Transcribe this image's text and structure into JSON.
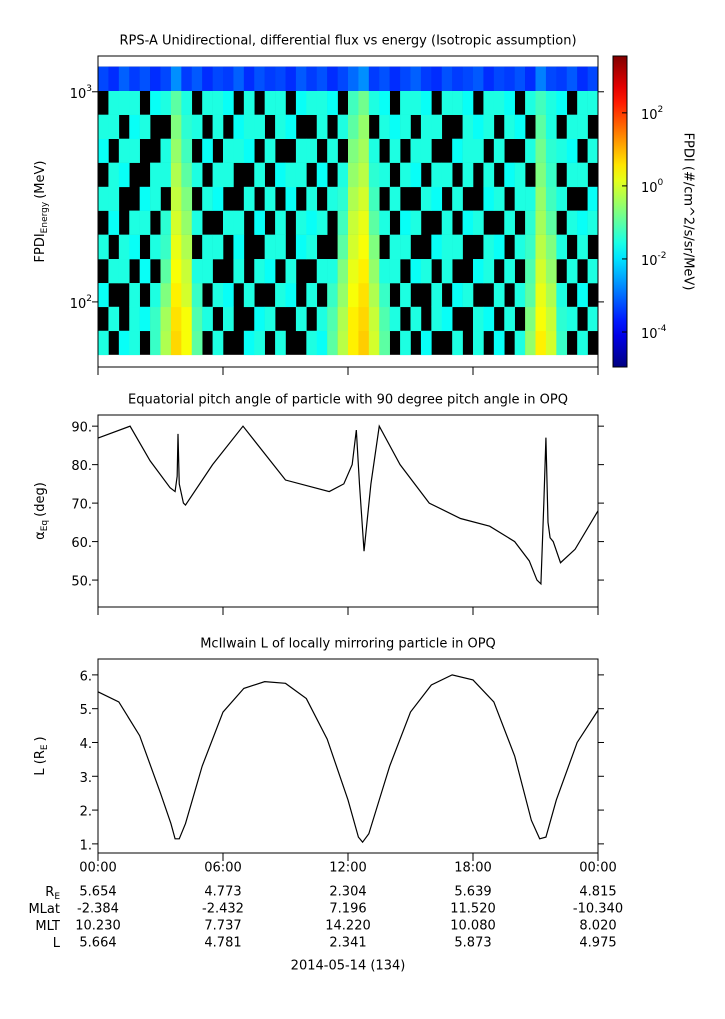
{
  "chart_data": [
    {
      "type": "spectrogram",
      "title": "RPS-A Unidirectional, differential flux vs energy (Isotropic assumption)",
      "ylabel": "FPDI",
      "ylabel_sub": "Energy",
      "ylabel_end": "(MeV)",
      "zlabel": "FPDI (#/cm^2/s/sr/MeV)",
      "ylog": true,
      "xlim": [
        0,
        24
      ],
      "xticks": [
        0,
        6,
        12,
        18,
        24
      ],
      "ylim": [
        49,
        1480
      ],
      "yticks": [
        {
          "value": 100,
          "label": "10",
          "exponent": "2"
        },
        {
          "value": 1000,
          "label": "10",
          "exponent": "3"
        }
      ],
      "zlim": [
        1.1e-05,
        3600
      ],
      "zticks": [
        {
          "value": 0.0001,
          "label": "10",
          "exponent": "-4"
        },
        {
          "value": 0.01,
          "label": "10",
          "exponent": "-2"
        },
        {
          "value": 1,
          "label": "10",
          "exponent": "0"
        },
        {
          "value": 100,
          "label": "10",
          "exponent": "2"
        }
      ],
      "x": [
        0.25,
        0.75,
        1.25,
        1.75,
        2.25,
        2.75,
        3.25,
        3.75,
        4.25,
        4.75,
        5.25,
        5.75,
        6.25,
        6.75,
        7.25,
        7.75,
        8.25,
        8.75,
        9.25,
        9.75,
        10.25,
        10.75,
        11.25,
        11.75,
        12.25,
        12.75,
        13.25,
        13.75,
        14.25,
        14.75,
        15.25,
        15.75,
        16.25,
        16.75,
        17.25,
        17.75,
        18.25,
        18.75,
        19.25,
        19.75,
        20.25,
        20.75,
        21.25,
        21.75,
        22.25,
        22.75,
        23.25,
        23.75
      ],
      "ybins": [
        56,
        72.9,
        94.8,
        123,
        160,
        209,
        272,
        353,
        460,
        598,
        778,
        1012,
        1317
      ],
      "z": [
        [
          0.03,
          null,
          0.02,
          0.03,
          null,
          0.05,
          0.5,
          5,
          2,
          0.1,
          null,
          0.03,
          null,
          null,
          0.02,
          0.03,
          null,
          0.03,
          null,
          null,
          0.03,
          0.02,
          0.1,
          0.6,
          3,
          6,
          1,
          0.1,
          null,
          0.03,
          null,
          0.02,
          null,
          null,
          0.03,
          null,
          0.03,
          null,
          0.02,
          null,
          0.03,
          0.3,
          3,
          1,
          0.05,
          null,
          0.03,
          null
        ],
        [
          null,
          0.03,
          null,
          0.03,
          0.02,
          0.05,
          0.4,
          4,
          2,
          0.08,
          0.03,
          null,
          0.03,
          null,
          null,
          0.02,
          0.03,
          null,
          null,
          0.03,
          null,
          0.03,
          0.08,
          0.5,
          3,
          5,
          0.8,
          0.08,
          0.03,
          null,
          0.03,
          null,
          0.03,
          0.02,
          null,
          null,
          0.03,
          0.02,
          null,
          0.03,
          null,
          0.2,
          2,
          0.8,
          0.04,
          0.03,
          null,
          0.03
        ],
        [
          0.02,
          null,
          null,
          0.03,
          null,
          0.03,
          0.2,
          3,
          1,
          0.05,
          null,
          0.03,
          0.02,
          null,
          0.03,
          null,
          null,
          0.03,
          0.02,
          null,
          0.03,
          null,
          0.05,
          0.3,
          2,
          4,
          0.5,
          0.05,
          null,
          0.03,
          null,
          null,
          0.03,
          null,
          0.02,
          0.03,
          null,
          null,
          0.03,
          null,
          0.03,
          0.1,
          1.5,
          0.5,
          0.03,
          null,
          0.02,
          null
        ],
        [
          null,
          0.03,
          0.03,
          null,
          0.02,
          null,
          0.1,
          2,
          0.8,
          0.03,
          0.03,
          null,
          null,
          0.03,
          null,
          0.03,
          0.02,
          null,
          0.03,
          null,
          null,
          0.03,
          0.03,
          0.2,
          1.5,
          3,
          0.3,
          0.03,
          0.03,
          null,
          0.02,
          0.03,
          null,
          0.03,
          null,
          null,
          0.02,
          0.03,
          null,
          0.03,
          null,
          0.08,
          1,
          0.3,
          null,
          0.03,
          null,
          0.03
        ],
        [
          0.03,
          null,
          0.03,
          0.02,
          null,
          0.03,
          0.05,
          1.5,
          0.5,
          null,
          0.03,
          0.03,
          null,
          0.02,
          null,
          null,
          0.03,
          0.03,
          null,
          0.02,
          0.03,
          null,
          null,
          0.1,
          1,
          2,
          0.2,
          null,
          0.03,
          0.03,
          null,
          null,
          0.02,
          0.03,
          0.03,
          null,
          null,
          0.03,
          0.02,
          null,
          0.03,
          0.05,
          0.6,
          0.2,
          0.03,
          null,
          0.03,
          null
        ],
        [
          null,
          0.02,
          null,
          0.03,
          0.03,
          null,
          0.04,
          1,
          0.3,
          0.03,
          null,
          null,
          0.03,
          0.03,
          null,
          0.02,
          null,
          0.03,
          null,
          0.03,
          0.02,
          0.03,
          null,
          0.06,
          0.8,
          1.5,
          0.1,
          0.03,
          null,
          0.02,
          0.03,
          null,
          null,
          0.03,
          null,
          0.02,
          0.03,
          null,
          null,
          0.03,
          null,
          0.04,
          0.4,
          0.1,
          null,
          0.03,
          0.02,
          0.03
        ],
        [
          0.03,
          0.03,
          null,
          null,
          0.02,
          0.03,
          null,
          0.7,
          0.2,
          null,
          0.03,
          0.02,
          null,
          null,
          0.03,
          null,
          0.03,
          null,
          0.02,
          null,
          0.03,
          null,
          0.03,
          0.04,
          0.5,
          1,
          0.06,
          null,
          0.03,
          null,
          null,
          0.03,
          0.02,
          null,
          0.03,
          null,
          null,
          0.02,
          0.03,
          null,
          0.03,
          0.03,
          0.3,
          0.06,
          0.03,
          null,
          null,
          0.02
        ],
        [
          null,
          0.03,
          0.02,
          null,
          null,
          0.03,
          0.03,
          0.5,
          0.1,
          0.03,
          null,
          0.03,
          0.03,
          null,
          null,
          0.03,
          null,
          0.02,
          0.03,
          0.03,
          null,
          0.02,
          null,
          0.03,
          0.3,
          0.6,
          0.04,
          0.03,
          null,
          0.03,
          0.02,
          null,
          0.03,
          0.03,
          null,
          0.03,
          null,
          0.03,
          null,
          0.02,
          0.03,
          null,
          0.2,
          0.05,
          null,
          0.03,
          0.03,
          null
        ],
        [
          0.02,
          null,
          0.03,
          0.03,
          null,
          null,
          0.03,
          0.3,
          0.06,
          null,
          0.02,
          null,
          0.03,
          0.03,
          0.02,
          null,
          0.03,
          null,
          null,
          0.03,
          0.03,
          null,
          0.03,
          null,
          0.2,
          0.4,
          0.03,
          null,
          0.03,
          null,
          0.03,
          0.03,
          null,
          null,
          0.02,
          0.03,
          0.03,
          null,
          0.03,
          null,
          null,
          0.03,
          0.15,
          0.04,
          0.03,
          0.02,
          null,
          0.03
        ],
        [
          0.03,
          0.03,
          null,
          0.02,
          0.03,
          null,
          null,
          0.2,
          0.04,
          0.03,
          null,
          0.03,
          null,
          0.02,
          0.03,
          0.03,
          null,
          0.03,
          0.02,
          null,
          null,
          0.03,
          null,
          0.03,
          0.1,
          0.3,
          null,
          0.03,
          0.02,
          0.03,
          null,
          0.03,
          0.03,
          null,
          null,
          0.03,
          0.02,
          0.03,
          null,
          0.03,
          0.02,
          null,
          0.1,
          0.03,
          null,
          0.03,
          0.03,
          null
        ],
        [
          null,
          0.03,
          0.03,
          0.03,
          null,
          0.02,
          0.03,
          0.1,
          0.03,
          null,
          0.03,
          0.03,
          0.02,
          null,
          0.03,
          null,
          0.03,
          0.03,
          null,
          0.02,
          0.03,
          0.03,
          0.02,
          null,
          0.06,
          0.15,
          0.03,
          0.02,
          null,
          0.03,
          0.03,
          0.02,
          null,
          0.03,
          0.03,
          0.02,
          null,
          0.03,
          0.03,
          0.02,
          null,
          0.03,
          0.06,
          0.03,
          0.02,
          null,
          0.03,
          0.03
        ],
        [
          0.0005,
          0.0003,
          0.0008,
          0.0004,
          0.0006,
          0.0003,
          0.0005,
          0.002,
          0.0004,
          0.0007,
          0.0003,
          0.0005,
          0.0004,
          0.0008,
          0.0003,
          0.0006,
          0.0004,
          0.0005,
          0.0003,
          0.0007,
          0.0004,
          0.0006,
          0.0003,
          0.0005,
          0.001,
          0.002,
          0.0004,
          0.0006,
          0.0003,
          0.0005,
          0.0008,
          0.0004,
          0.0003,
          0.0006,
          0.0004,
          0.0005,
          0.0007,
          0.0003,
          0.0005,
          0.0004,
          0.0006,
          0.0003,
          0.0015,
          0.0005,
          0.0004,
          0.0007,
          0.0003,
          0.0005
        ]
      ]
    },
    {
      "type": "line",
      "title": "Equatorial pitch angle of particle with 90 degree pitch angle in OPQ",
      "ylabel": "α",
      "ylabel_sub": "Eq",
      "ylabel_end": "(deg)",
      "xlim": [
        0,
        24
      ],
      "xticks": [
        0,
        6,
        12,
        18,
        24
      ],
      "ylim": [
        43,
        92.9
      ],
      "yticks": [
        {
          "value": 50,
          "label": "50."
        },
        {
          "value": 60,
          "label": "60."
        },
        {
          "value": 70,
          "label": "70."
        },
        {
          "value": 80,
          "label": "80."
        },
        {
          "value": 90,
          "label": "90."
        }
      ],
      "color": "#000000",
      "x": [
        0,
        1.54,
        2.5,
        3.46,
        3.7,
        3.8,
        3.84,
        3.9,
        4.1,
        4.2,
        5.5,
        6.96,
        9,
        11.1,
        11.8,
        12.2,
        12.4,
        12.55,
        12.77,
        13.1,
        13.5,
        14.5,
        15.9,
        17.4,
        18.8,
        20,
        20.7,
        21.07,
        21.26,
        21.4,
        21.5,
        21.6,
        21.7,
        21.85,
        22.2,
        22.9,
        24
      ],
      "values": [
        86.9,
        90,
        81,
        74,
        73,
        77,
        88,
        75,
        70,
        69.5,
        80,
        90,
        76,
        73,
        75,
        80,
        89,
        75,
        57.5,
        75,
        90,
        80,
        70,
        66,
        64,
        60,
        55,
        50,
        49,
        70,
        87,
        65,
        61,
        60,
        54.5,
        58,
        68
      ]
    },
    {
      "type": "line",
      "title": "McIlwain L of locally mirroring particle in OPQ",
      "ylabel": "L (R",
      "ylabel_sub": "E",
      "ylabel_end": ")",
      "xlim": [
        0,
        24
      ],
      "xticks": [
        {
          "value": 0,
          "label": "00:00"
        },
        {
          "value": 6,
          "label": "06:00"
        },
        {
          "value": 12,
          "label": "12:00"
        },
        {
          "value": 18,
          "label": "18:00"
        },
        {
          "value": 24,
          "label": "00:00"
        }
      ],
      "ylim": [
        0.73,
        6.47
      ],
      "yticks": [
        {
          "value": 1,
          "label": "1."
        },
        {
          "value": 2,
          "label": "2."
        },
        {
          "value": 3,
          "label": "3."
        },
        {
          "value": 4,
          "label": "4."
        },
        {
          "value": 5,
          "label": "5."
        },
        {
          "value": 6,
          "label": "6."
        }
      ],
      "color": "#000000",
      "x": [
        0,
        1,
        2,
        3,
        3.5,
        3.7,
        3.9,
        4.2,
        5,
        6,
        7,
        8,
        9,
        10,
        11,
        12,
        12.5,
        12.7,
        13,
        14,
        15,
        16,
        17,
        18,
        19,
        20,
        20.8,
        21.2,
        21.5,
        22,
        23,
        24
      ],
      "values": [
        5.5,
        5.2,
        4.2,
        2.5,
        1.6,
        1.15,
        1.15,
        1.6,
        3.3,
        4.9,
        5.6,
        5.8,
        5.75,
        5.3,
        4.1,
        2.3,
        1.2,
        1.05,
        1.3,
        3.3,
        4.9,
        5.7,
        6.0,
        5.85,
        5.2,
        3.6,
        1.7,
        1.15,
        1.2,
        2.3,
        4.0,
        4.95
      ]
    }
  ],
  "ephemeris": {
    "rows": [
      {
        "label": "R",
        "label_sub": "E",
        "values": [
          "5.654",
          "4.773",
          "2.304",
          "5.639",
          "4.815"
        ]
      },
      {
        "label": "MLat",
        "values": [
          "-2.384",
          "-2.432",
          "7.196",
          "11.520",
          "-10.340"
        ]
      },
      {
        "label": "MLT",
        "values": [
          "10.230",
          "7.737",
          "14.220",
          "10.080",
          "8.020"
        ]
      },
      {
        "label": "L",
        "values": [
          "5.664",
          "4.781",
          "2.341",
          "5.873",
          "4.975"
        ]
      }
    ],
    "date": "2014-05-14 (134)"
  }
}
